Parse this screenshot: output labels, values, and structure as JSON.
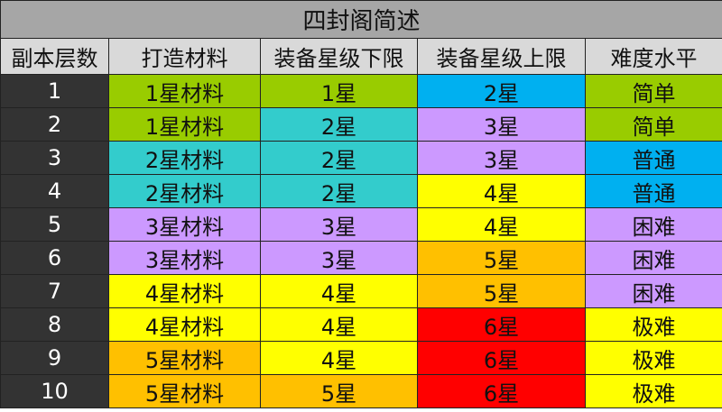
{
  "title": "四封阁简述",
  "headers": [
    "副本层数",
    "打造材料",
    "装备星级下限",
    "装备星级上限",
    "难度水平"
  ],
  "colors": {
    "green": "#99cc00",
    "teal": "#33cccc",
    "purple": "#cc99ff",
    "yellow": "#ffff00",
    "orange": "#ffc000",
    "red": "#ff0000",
    "blue": "#00b0f0"
  },
  "rows": [
    {
      "level": "1",
      "material": "1星材料",
      "min": "1星",
      "max": "2星",
      "difficulty": "简单",
      "c": [
        "green",
        "green",
        "blue",
        "green"
      ]
    },
    {
      "level": "2",
      "material": "1星材料",
      "min": "2星",
      "max": "3星",
      "difficulty": "简单",
      "c": [
        "green",
        "teal",
        "purple",
        "green"
      ]
    },
    {
      "level": "3",
      "material": "2星材料",
      "min": "2星",
      "max": "3星",
      "difficulty": "普通",
      "c": [
        "teal",
        "teal",
        "purple",
        "blue"
      ]
    },
    {
      "level": "4",
      "material": "2星材料",
      "min": "2星",
      "max": "4星",
      "difficulty": "普通",
      "c": [
        "teal",
        "teal",
        "yellow",
        "blue"
      ]
    },
    {
      "level": "5",
      "material": "3星材料",
      "min": "3星",
      "max": "4星",
      "difficulty": "困难",
      "c": [
        "purple",
        "purple",
        "yellow",
        "purple"
      ]
    },
    {
      "level": "6",
      "material": "3星材料",
      "min": "3星",
      "max": "5星",
      "difficulty": "困难",
      "c": [
        "purple",
        "purple",
        "orange",
        "purple"
      ]
    },
    {
      "level": "7",
      "material": "4星材料",
      "min": "4星",
      "max": "5星",
      "difficulty": "困难",
      "c": [
        "yellow",
        "yellow",
        "orange",
        "purple"
      ]
    },
    {
      "level": "8",
      "material": "4星材料",
      "min": "4星",
      "max": "6星",
      "difficulty": "极难",
      "c": [
        "yellow",
        "yellow",
        "red",
        "yellow"
      ]
    },
    {
      "level": "9",
      "material": "5星材料",
      "min": "4星",
      "max": "6星",
      "difficulty": "极难",
      "c": [
        "orange",
        "yellow",
        "red",
        "yellow"
      ]
    },
    {
      "level": "10",
      "material": "5星材料",
      "min": "5星",
      "max": "6星",
      "difficulty": "极难",
      "c": [
        "orange",
        "orange",
        "red",
        "yellow"
      ]
    }
  ]
}
